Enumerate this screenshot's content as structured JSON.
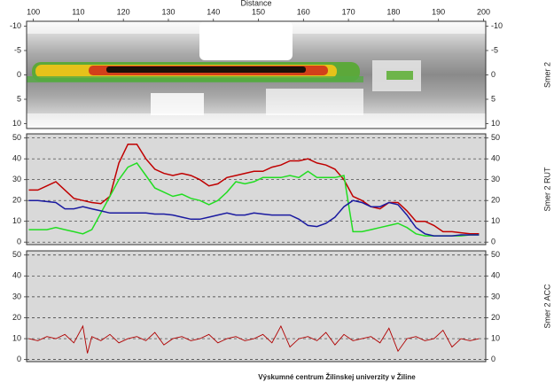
{
  "chart_data": [
    {
      "type": "heatmap",
      "xlabel": "Distance",
      "ylabel": "Smer 2",
      "xlim": [
        98.5,
        200.5
      ],
      "xticks": [
        100,
        110,
        120,
        130,
        140,
        150,
        160,
        170,
        180,
        190,
        200
      ],
      "ylim": [
        -11,
        11
      ],
      "y_inverted": true,
      "yticks": [
        -10,
        -5,
        0,
        5,
        10
      ]
    },
    {
      "type": "line",
      "ylabel": "Smer 2 RUT",
      "grid": true,
      "xlim": [
        98.5,
        200.5
      ],
      "ylim": [
        -1.2,
        52
      ],
      "yticks": [
        0,
        10,
        20,
        30,
        40,
        50
      ],
      "x": [
        99,
        101,
        103,
        105,
        107,
        109,
        111,
        113,
        115,
        117,
        119,
        121,
        123,
        125,
        127,
        129,
        131,
        133,
        135,
        137,
        139,
        141,
        143,
        145,
        147,
        149,
        151,
        153,
        155,
        157,
        159,
        161,
        163,
        165,
        167,
        169,
        171,
        173,
        175,
        177,
        179,
        181,
        183,
        185,
        187,
        189,
        191,
        193,
        195,
        197,
        199
      ],
      "series": [
        {
          "color": "#c00000",
          "values": [
            25,
            25,
            27,
            29,
            25,
            21,
            20,
            19,
            18.5,
            22,
            38,
            47,
            47,
            40,
            35,
            33,
            32,
            33,
            32,
            30,
            27,
            28,
            31,
            32,
            33,
            34,
            34,
            36,
            37,
            39,
            39,
            40,
            38,
            37,
            35,
            30,
            22,
            20,
            17,
            16,
            19,
            19,
            15,
            10,
            10,
            8,
            5,
            5,
            4.5,
            4,
            4
          ]
        },
        {
          "color": "#22dd22",
          "values": [
            6,
            6,
            6,
            7,
            6,
            5,
            4,
            6,
            14,
            22,
            30,
            36,
            38,
            32,
            26,
            24,
            22,
            23,
            21,
            20,
            18,
            20,
            24,
            29,
            28,
            29,
            31,
            31,
            31,
            32,
            31,
            34,
            31,
            31,
            31,
            32,
            5,
            5,
            6,
            7,
            8,
            9,
            7,
            4,
            3,
            3,
            3,
            3,
            3,
            3.5,
            3.5
          ]
        },
        {
          "color": "#1a1aa0",
          "values": [
            20,
            20,
            19.5,
            19,
            16,
            16,
            17,
            16,
            15,
            14,
            14,
            14,
            14,
            14,
            13.5,
            13.5,
            13,
            12,
            11,
            11,
            12,
            13,
            14,
            13,
            13,
            14,
            13.5,
            13,
            13,
            13,
            11,
            8,
            7.5,
            9,
            12,
            17,
            20,
            19,
            17,
            17,
            19,
            18,
            13,
            7,
            4,
            3,
            3,
            3,
            3.5,
            3.5,
            3.5
          ]
        }
      ]
    },
    {
      "type": "line",
      "ylabel": "Smer 2 ACC",
      "grid": true,
      "xlim": [
        98.5,
        200.5
      ],
      "ylim": [
        -1,
        52
      ],
      "yticks": [
        0,
        10,
        20,
        30,
        40,
        50
      ],
      "x": [
        99,
        101,
        103,
        105,
        107,
        109,
        111,
        112,
        113,
        115,
        117,
        119,
        121,
        123,
        125,
        127,
        129,
        131,
        133,
        135,
        137,
        139,
        141,
        143,
        145,
        147,
        149,
        151,
        153,
        155,
        157,
        159,
        161,
        163,
        165,
        167,
        169,
        171,
        173,
        175,
        177,
        179,
        181,
        183,
        185,
        187,
        189,
        191,
        193,
        195,
        197,
        199
      ],
      "series": [
        {
          "color": "#b00000",
          "values": [
            10,
            9,
            11,
            10,
            12,
            8,
            16,
            3,
            11,
            9,
            12,
            8,
            10,
            11,
            9,
            13,
            7,
            10,
            11,
            9,
            10,
            12,
            8,
            10,
            11,
            9,
            10,
            12,
            8,
            16,
            6,
            10,
            11,
            9,
            13,
            7,
            12,
            9,
            10,
            11,
            8,
            15,
            4,
            10,
            11,
            9,
            10,
            14,
            6,
            10,
            9,
            10
          ]
        }
      ]
    }
  ],
  "footer": "Výskumné centrum Žilinskej univerzity v Žiline"
}
